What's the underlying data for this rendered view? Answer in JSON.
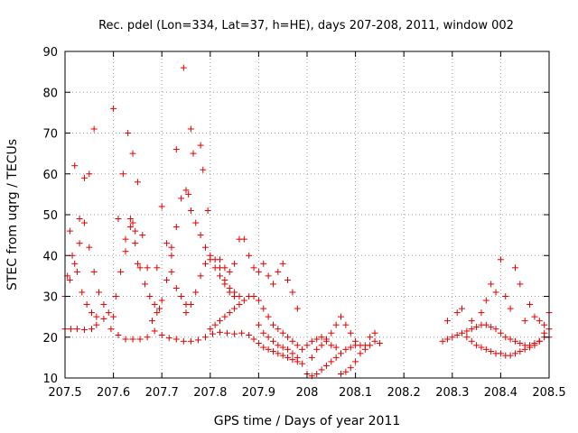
{
  "chart_data": {
    "type": "scatter",
    "title": "Rec. pdel (Lon=334, Lat=37, h=HE), days 207-208, 2011, window 002",
    "xlabel": "GPS time / Days of year 2011",
    "ylabel": "STEC from uqrg / TECUs",
    "xlim": [
      207.5,
      208.5
    ],
    "ylim": [
      10,
      90
    ],
    "xticks": [
      207.5,
      207.6,
      207.7,
      207.8,
      207.9,
      208.0,
      208.1,
      208.2,
      208.3,
      208.4,
      208.5
    ],
    "xtick_labels": [
      "207.5",
      "207.6",
      "207.7",
      "207.8",
      "207.9",
      "208",
      "208.1",
      "208.2",
      "208.3",
      "208.4",
      "208.5"
    ],
    "yticks": [
      10,
      20,
      30,
      40,
      50,
      60,
      70,
      80,
      90
    ],
    "ytick_labels": [
      "10",
      "20",
      "30",
      "40",
      "50",
      "60",
      "70",
      "80",
      "90"
    ],
    "grid": true,
    "marker": "+",
    "marker_color": "#e00000",
    "series": [
      {
        "name": "STEC",
        "points": [
          [
            207.5,
            22
          ],
          [
            207.512,
            22
          ],
          [
            207.525,
            22
          ],
          [
            207.54,
            21.8
          ],
          [
            207.555,
            22
          ],
          [
            207.565,
            23
          ],
          [
            207.58,
            24.5
          ],
          [
            207.595,
            22
          ],
          [
            207.61,
            20.5
          ],
          [
            207.625,
            19.5
          ],
          [
            207.64,
            19.5
          ],
          [
            207.655,
            19.5
          ],
          [
            207.67,
            20
          ],
          [
            207.685,
            21.5
          ],
          [
            207.7,
            20.5
          ],
          [
            207.715,
            19.8
          ],
          [
            207.73,
            19.5
          ],
          [
            207.745,
            19
          ],
          [
            207.76,
            19
          ],
          [
            207.775,
            19.3
          ],
          [
            207.79,
            20
          ],
          [
            207.805,
            20.8
          ],
          [
            207.82,
            21.2
          ],
          [
            207.835,
            21
          ],
          [
            207.85,
            20.8
          ],
          [
            207.865,
            21
          ],
          [
            207.88,
            20.5
          ],
          [
            207.89,
            19.5
          ],
          [
            207.9,
            18.5
          ],
          [
            207.91,
            17.5
          ],
          [
            207.92,
            17
          ],
          [
            207.93,
            16.5
          ],
          [
            207.94,
            16
          ],
          [
            207.95,
            15.5
          ],
          [
            207.96,
            15
          ],
          [
            207.97,
            14.5
          ],
          [
            207.98,
            14
          ],
          [
            207.99,
            13.5
          ],
          [
            207.5,
            30
          ],
          [
            207.51,
            34
          ],
          [
            207.52,
            38
          ],
          [
            207.53,
            43
          ],
          [
            207.54,
            48
          ],
          [
            207.55,
            42
          ],
          [
            207.56,
            36
          ],
          [
            207.57,
            31
          ],
          [
            207.58,
            28
          ],
          [
            207.59,
            26
          ],
          [
            207.6,
            25
          ],
          [
            207.505,
            35
          ],
          [
            207.515,
            40
          ],
          [
            207.525,
            36
          ],
          [
            207.535,
            31
          ],
          [
            207.545,
            28
          ],
          [
            207.555,
            26
          ],
          [
            207.565,
            25
          ],
          [
            207.5,
            30
          ],
          [
            207.51,
            46
          ],
          [
            207.52,
            62
          ],
          [
            207.53,
            49
          ],
          [
            207.54,
            59
          ],
          [
            207.55,
            60
          ],
          [
            207.56,
            71
          ],
          [
            207.605,
            30
          ],
          [
            207.615,
            36
          ],
          [
            207.625,
            41
          ],
          [
            207.635,
            47
          ],
          [
            207.645,
            43
          ],
          [
            207.655,
            37
          ],
          [
            207.665,
            33
          ],
          [
            207.675,
            30
          ],
          [
            207.685,
            28
          ],
          [
            207.695,
            27
          ],
          [
            207.61,
            49
          ],
          [
            207.62,
            60
          ],
          [
            207.63,
            70
          ],
          [
            207.64,
            65
          ],
          [
            207.65,
            58
          ],
          [
            207.66,
            45
          ],
          [
            207.67,
            37
          ],
          [
            207.6,
            76
          ],
          [
            207.625,
            44
          ],
          [
            207.635,
            49
          ],
          [
            207.64,
            48
          ],
          [
            207.645,
            46
          ],
          [
            207.65,
            38
          ],
          [
            207.68,
            24
          ],
          [
            207.69,
            26
          ],
          [
            207.7,
            29
          ],
          [
            207.71,
            34
          ],
          [
            207.72,
            42
          ],
          [
            207.73,
            47
          ],
          [
            207.74,
            54
          ],
          [
            207.75,
            56
          ],
          [
            207.755,
            55
          ],
          [
            207.76,
            51
          ],
          [
            207.77,
            48
          ],
          [
            207.78,
            45
          ],
          [
            207.79,
            42
          ],
          [
            207.8,
            39
          ],
          [
            207.81,
            37
          ],
          [
            207.82,
            35
          ],
          [
            207.83,
            33
          ],
          [
            207.84,
            31
          ],
          [
            207.85,
            30
          ],
          [
            207.69,
            37
          ],
          [
            207.7,
            52
          ],
          [
            207.71,
            43
          ],
          [
            207.72,
            36
          ],
          [
            207.73,
            32
          ],
          [
            207.74,
            30
          ],
          [
            207.75,
            28
          ],
          [
            207.72,
            40
          ],
          [
            207.73,
            66
          ],
          [
            207.745,
            86
          ],
          [
            207.76,
            71
          ],
          [
            207.765,
            65
          ],
          [
            207.78,
            67
          ],
          [
            207.785,
            61
          ],
          [
            207.795,
            51
          ],
          [
            207.75,
            26
          ],
          [
            207.76,
            28
          ],
          [
            207.77,
            31
          ],
          [
            207.78,
            35
          ],
          [
            207.79,
            38
          ],
          [
            207.8,
            40
          ],
          [
            207.81,
            39
          ],
          [
            207.82,
            37
          ],
          [
            207.83,
            34
          ],
          [
            207.84,
            32
          ],
          [
            207.85,
            31
          ],
          [
            207.86,
            30
          ],
          [
            207.8,
            22
          ],
          [
            207.81,
            23
          ],
          [
            207.82,
            24
          ],
          [
            207.83,
            25
          ],
          [
            207.84,
            26
          ],
          [
            207.85,
            27
          ],
          [
            207.86,
            28
          ],
          [
            207.87,
            29
          ],
          [
            207.88,
            30
          ],
          [
            207.89,
            30
          ],
          [
            207.9,
            29
          ],
          [
            207.91,
            27
          ],
          [
            207.92,
            25
          ],
          [
            207.93,
            23
          ],
          [
            207.94,
            22
          ],
          [
            207.95,
            21
          ],
          [
            207.96,
            20
          ],
          [
            207.97,
            19
          ],
          [
            207.98,
            18
          ],
          [
            207.99,
            17
          ],
          [
            207.82,
            39
          ],
          [
            207.83,
            37
          ],
          [
            207.84,
            36
          ],
          [
            207.85,
            38
          ],
          [
            207.86,
            44
          ],
          [
            207.87,
            44
          ],
          [
            207.88,
            40
          ],
          [
            207.89,
            37
          ],
          [
            207.9,
            36
          ],
          [
            207.91,
            38
          ],
          [
            207.92,
            35
          ],
          [
            207.93,
            33
          ],
          [
            207.94,
            36
          ],
          [
            207.95,
            38
          ],
          [
            207.96,
            34
          ],
          [
            207.97,
            31
          ],
          [
            207.98,
            27
          ],
          [
            207.9,
            23
          ],
          [
            207.91,
            21
          ],
          [
            207.92,
            20
          ],
          [
            207.93,
            19
          ],
          [
            207.94,
            18
          ],
          [
            207.95,
            17.5
          ],
          [
            207.96,
            17
          ],
          [
            207.97,
            16
          ],
          [
            207.98,
            15
          ],
          [
            208.0,
            11
          ],
          [
            208.01,
            10.5
          ],
          [
            208.02,
            11
          ],
          [
            208.03,
            12
          ],
          [
            208.04,
            13
          ],
          [
            208.05,
            14
          ],
          [
            208.06,
            15
          ],
          [
            208.07,
            16
          ],
          [
            208.08,
            17
          ],
          [
            208.09,
            17.5
          ],
          [
            208.1,
            18
          ],
          [
            208.01,
            15
          ],
          [
            208.02,
            17
          ],
          [
            208.03,
            18
          ],
          [
            208.04,
            19.5
          ],
          [
            208.05,
            21
          ],
          [
            208.06,
            23
          ],
          [
            208.07,
            25
          ],
          [
            208.08,
            23
          ],
          [
            208.09,
            21
          ],
          [
            208.1,
            19
          ],
          [
            208.11,
            18
          ],
          [
            208.12,
            17
          ],
          [
            208.13,
            18
          ],
          [
            208.14,
            19
          ],
          [
            208.0,
            18
          ],
          [
            208.01,
            19
          ],
          [
            208.02,
            19.5
          ],
          [
            208.03,
            20
          ],
          [
            208.04,
            19
          ],
          [
            208.05,
            18
          ],
          [
            208.06,
            17.5
          ],
          [
            208.07,
            11
          ],
          [
            208.08,
            11.5
          ],
          [
            208.09,
            12.5
          ],
          [
            208.1,
            14
          ],
          [
            208.11,
            16
          ],
          [
            208.12,
            18
          ],
          [
            208.13,
            20
          ],
          [
            208.14,
            21
          ],
          [
            208.15,
            18.5
          ],
          [
            208.28,
            19
          ],
          [
            208.29,
            19.5
          ],
          [
            208.3,
            20
          ],
          [
            208.31,
            20.5
          ],
          [
            208.32,
            21
          ],
          [
            208.33,
            21.5
          ],
          [
            208.34,
            22
          ],
          [
            208.35,
            22.5
          ],
          [
            208.36,
            23
          ],
          [
            208.37,
            23
          ],
          [
            208.38,
            22.5
          ],
          [
            208.39,
            22
          ],
          [
            208.4,
            21
          ],
          [
            208.41,
            20
          ],
          [
            208.42,
            19.5
          ],
          [
            208.43,
            19
          ],
          [
            208.44,
            18.5
          ],
          [
            208.45,
            18
          ],
          [
            208.46,
            18
          ],
          [
            208.47,
            18.5
          ],
          [
            208.48,
            19
          ],
          [
            208.49,
            20
          ],
          [
            208.5,
            20
          ],
          [
            208.29,
            24
          ],
          [
            208.31,
            26
          ],
          [
            208.32,
            27
          ],
          [
            208.34,
            24
          ],
          [
            208.36,
            26
          ],
          [
            208.37,
            29
          ],
          [
            208.38,
            33
          ],
          [
            208.39,
            31
          ],
          [
            208.4,
            39
          ],
          [
            208.41,
            30
          ],
          [
            208.42,
            27
          ],
          [
            208.43,
            37
          ],
          [
            208.44,
            33
          ],
          [
            208.45,
            24
          ],
          [
            208.46,
            28
          ],
          [
            208.47,
            25
          ],
          [
            208.48,
            24
          ],
          [
            208.49,
            23
          ],
          [
            208.5,
            26
          ],
          [
            208.33,
            20
          ],
          [
            208.34,
            19
          ],
          [
            208.35,
            18
          ],
          [
            208.36,
            17.5
          ],
          [
            208.37,
            17
          ],
          [
            208.38,
            16.5
          ],
          [
            208.39,
            16
          ],
          [
            208.4,
            16
          ],
          [
            208.41,
            15.5
          ],
          [
            208.42,
            15.5
          ],
          [
            208.43,
            16
          ],
          [
            208.44,
            16.5
          ],
          [
            208.45,
            17
          ],
          [
            208.46,
            17.5
          ],
          [
            208.47,
            18
          ],
          [
            208.48,
            19
          ],
          [
            208.49,
            21
          ],
          [
            208.5,
            22
          ]
        ]
      }
    ]
  }
}
